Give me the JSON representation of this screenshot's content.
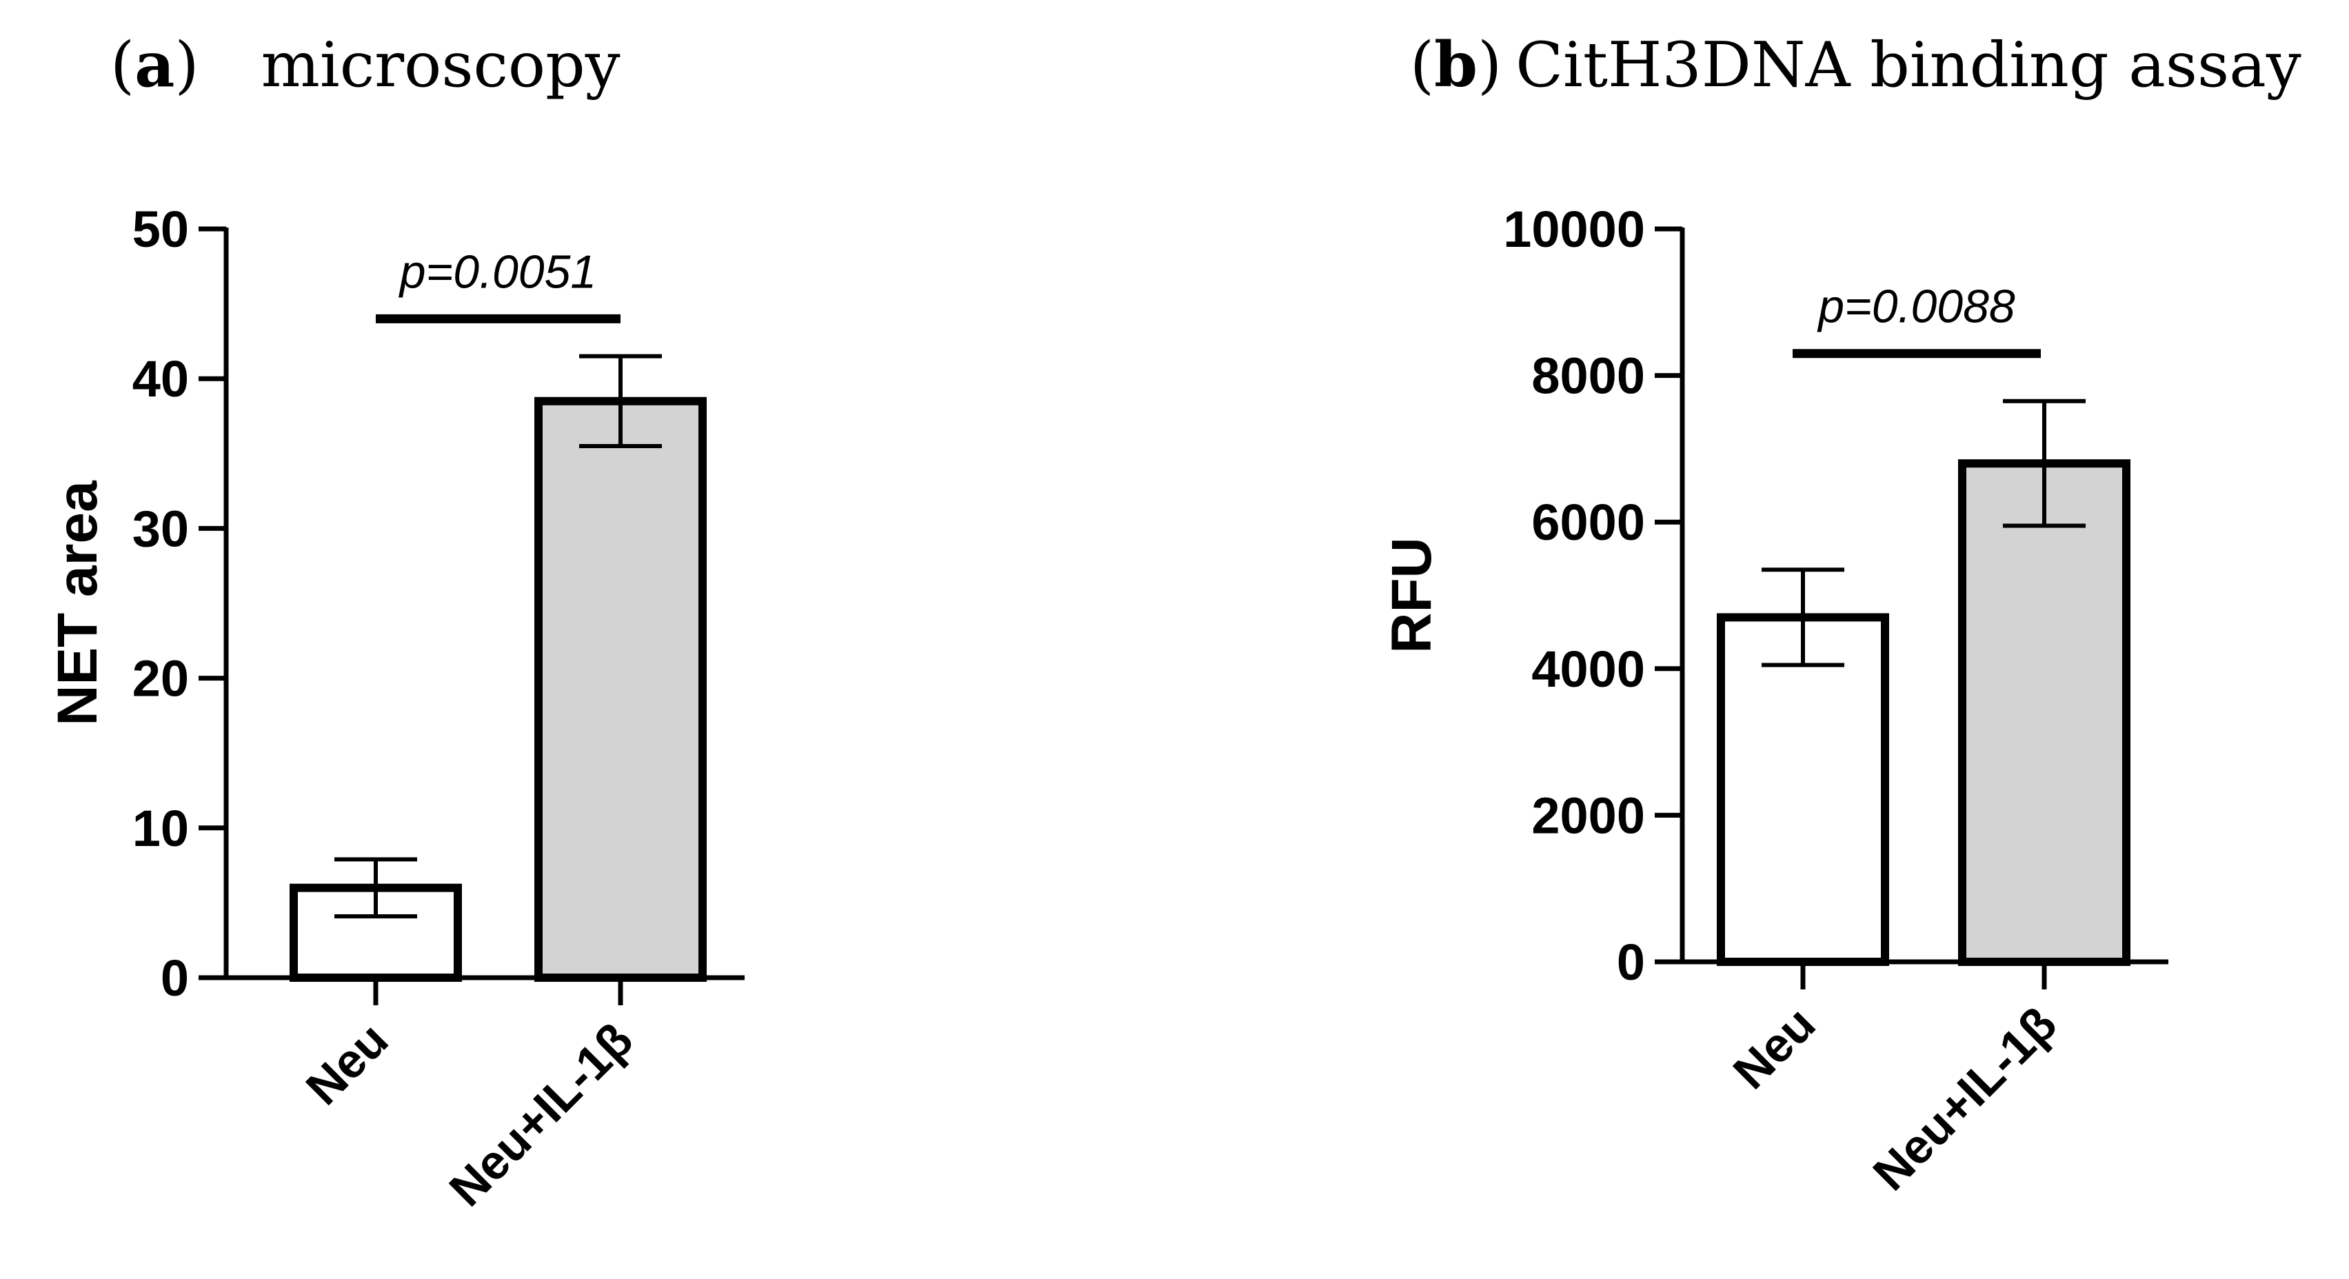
{
  "chart_data": [
    {
      "type": "bar",
      "panel_letter": "a",
      "title": "microscopy",
      "xlabel": "",
      "ylabel": "NET area",
      "ylim": [
        0,
        50
      ],
      "yticks": [
        "0",
        "10",
        "20",
        "30",
        "40",
        "50"
      ],
      "categories": [
        "Neu",
        "Neu+IL-1β"
      ],
      "series": [
        {
          "values": [
            6,
            38.5
          ],
          "error": [
            1.9,
            3.0
          ],
          "fills": [
            "#ffffff",
            "#d3d3d3"
          ]
        }
      ],
      "annotation": {
        "text": "p=0.0051",
        "y": 44
      },
      "grid": false
    },
    {
      "type": "bar",
      "panel_letter": "b",
      "title": "CitH3DNA binding assay",
      "xlabel": "",
      "ylabel": "RFU",
      "ylim": [
        0,
        10000
      ],
      "yticks": [
        "0",
        "2000",
        "4000",
        "6000",
        "8000",
        "10000"
      ],
      "categories": [
        "Neu",
        "Neu+IL-1β"
      ],
      "series": [
        {
          "values": [
            4700,
            6800
          ],
          "error": [
            650,
            850
          ],
          "fills": [
            "#ffffff",
            "#d3d3d3"
          ]
        }
      ],
      "annotation": {
        "text": "p=0.0088",
        "y": 8300
      },
      "grid": false
    }
  ]
}
